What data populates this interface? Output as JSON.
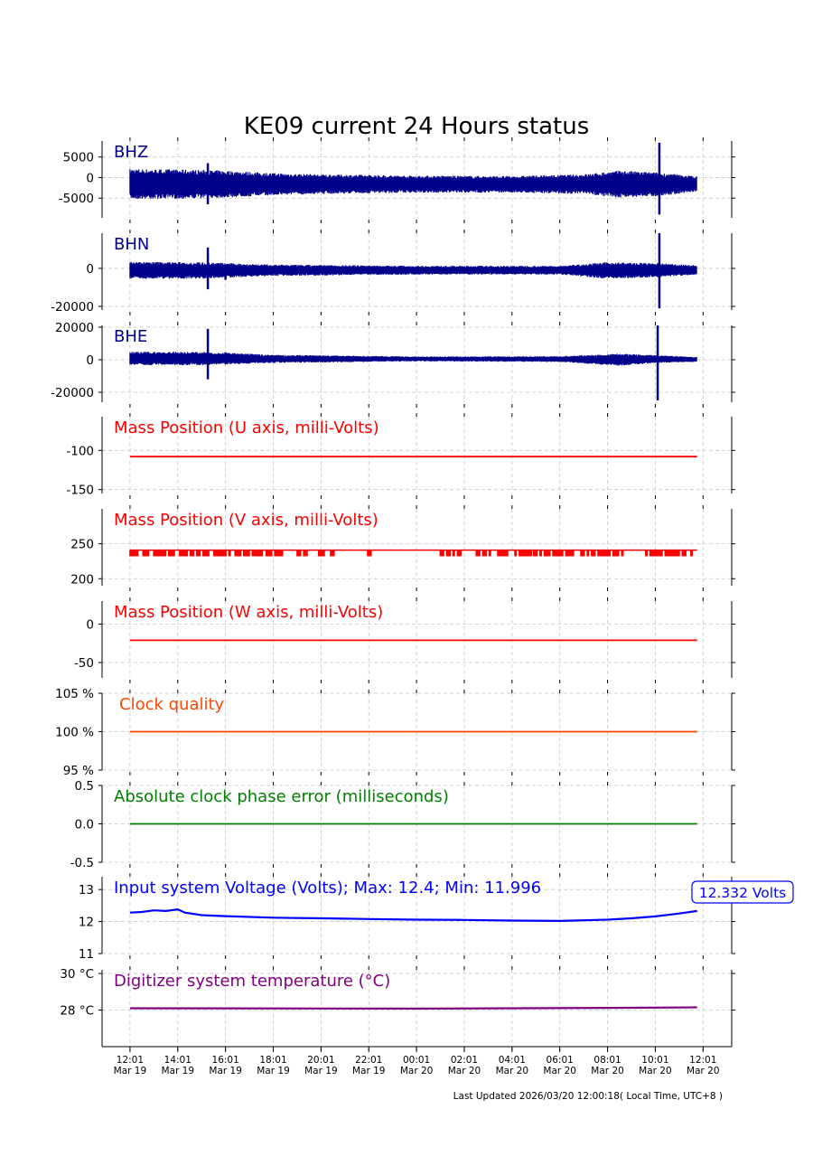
{
  "chart_data": {
    "type": "line",
    "title": "KE09 current 24 Hours status",
    "x_units": "hours since 12:01 Mar 19",
    "xlim": [
      -1.17,
      25.2
    ],
    "xticks": [
      {
        "x": 0,
        "time": "12:01",
        "date": "Mar 19"
      },
      {
        "x": 2,
        "time": "14:01",
        "date": "Mar 19"
      },
      {
        "x": 4,
        "time": "16:01",
        "date": "Mar 19"
      },
      {
        "x": 6,
        "time": "18:01",
        "date": "Mar 19"
      },
      {
        "x": 8,
        "time": "20:01",
        "date": "Mar 19"
      },
      {
        "x": 10,
        "time": "22:01",
        "date": "Mar 19"
      },
      {
        "x": 12,
        "time": "00:01",
        "date": "Mar 20"
      },
      {
        "x": 14,
        "time": "02:01",
        "date": "Mar 20"
      },
      {
        "x": 16,
        "time": "04:01",
        "date": "Mar 20"
      },
      {
        "x": 18,
        "time": "06:01",
        "date": "Mar 20"
      },
      {
        "x": 20,
        "time": "08:01",
        "date": "Mar 20"
      },
      {
        "x": 22,
        "time": "10:01",
        "date": "Mar 20"
      },
      {
        "x": 24,
        "time": "12:01",
        "date": "Mar 20"
      }
    ],
    "grid": true,
    "panels": [
      {
        "label": "BHZ",
        "color": "#00008b",
        "kind": "envelope",
        "ylim": [
          -9800,
          8900
        ],
        "yticks": [
          {
            "v": 5000,
            "t": "5000"
          },
          {
            "v": 0,
            "t": "0"
          },
          {
            "v": -5000,
            "t": "-5000"
          }
        ],
        "envelope": [
          [
            0,
            -4000,
            900
          ],
          [
            2,
            -4000,
            800
          ],
          [
            4,
            -3800,
            600
          ],
          [
            6,
            -3400,
            200
          ],
          [
            8,
            -3200,
            0
          ],
          [
            12,
            -3000,
            -200
          ],
          [
            16,
            -3000,
            -300
          ],
          [
            19,
            -3200,
            0
          ],
          [
            20.5,
            -3800,
            600
          ],
          [
            22,
            -3600,
            300
          ],
          [
            23.75,
            -2800,
            -300
          ]
        ],
        "spikes": [
          [
            3.26,
            -6500,
            3500
          ],
          [
            20.5,
            -3800,
            1500
          ],
          [
            22.17,
            -9000,
            8500
          ]
        ]
      },
      {
        "label": "BHN",
        "color": "#00008b",
        "kind": "envelope",
        "ylim": [
          -21900,
          18500
        ],
        "yticks": [
          {
            "v": 0,
            "t": "0"
          },
          {
            "v": -20000,
            "t": "-20000"
          }
        ],
        "envelope": [
          [
            0,
            -4000,
            2000
          ],
          [
            3,
            -4000,
            1800
          ],
          [
            6,
            -3000,
            1000
          ],
          [
            12,
            -2500,
            600
          ],
          [
            18,
            -2500,
            600
          ],
          [
            20,
            -4000,
            1800
          ],
          [
            22,
            -3500,
            1500
          ],
          [
            23.75,
            -2500,
            800
          ]
        ],
        "spikes": [
          [
            3.26,
            -11000,
            11000
          ],
          [
            4,
            -6000,
            2000
          ],
          [
            22.17,
            -21000,
            18500
          ]
        ]
      },
      {
        "label": "BHE",
        "color": "#00008b",
        "kind": "envelope",
        "ylim": [
          -26100,
          21100
        ],
        "yticks": [
          {
            "v": 20000,
            "t": "20000"
          },
          {
            "v": 0,
            "t": "0"
          },
          {
            "v": -20000,
            "t": "-20000"
          }
        ],
        "envelope": [
          [
            0,
            -2000,
            3500
          ],
          [
            3,
            -2000,
            3500
          ],
          [
            6,
            -1200,
            2200
          ],
          [
            12,
            -500,
            1500
          ],
          [
            18,
            -800,
            1600
          ],
          [
            20.5,
            -2500,
            2500
          ],
          [
            22,
            -1200,
            2000
          ],
          [
            23.75,
            -800,
            1200
          ]
        ],
        "spikes": [
          [
            3.26,
            -12000,
            19000
          ],
          [
            4,
            -1000,
            4500
          ],
          [
            22.1,
            -25000,
            21000
          ]
        ]
      },
      {
        "label": "Mass Position (U axis, milli-Volts)",
        "color": "#ff0000",
        "kind": "line",
        "ylim": [
          -155,
          -57
        ],
        "yticks": [
          {
            "v": -100,
            "t": "-100"
          },
          {
            "v": -150,
            "t": "-150"
          }
        ],
        "points": [
          [
            0,
            -108
          ],
          [
            23.75,
            -108
          ]
        ]
      },
      {
        "label": "Mass Position (V axis, milli-Volts)",
        "color": "#ff0000",
        "kind": "toggle",
        "ylim": [
          190,
          300
        ],
        "yticks": [
          {
            "v": 250,
            "t": "250"
          },
          {
            "v": 200,
            "t": "200"
          }
        ],
        "base": 241,
        "low": 233,
        "range": [
          0,
          23.75
        ],
        "drop_intervals": [
          [
            0,
            4.16
          ],
          [
            4.4,
            5.5
          ],
          [
            5.7,
            6.4
          ],
          [
            7,
            7.4
          ],
          [
            7.9,
            8.1
          ],
          [
            8.4,
            8.5
          ],
          [
            9.95,
            10.1
          ],
          [
            12.9,
            13.8
          ],
          [
            14.5,
            15.1
          ],
          [
            15.4,
            16.8
          ],
          [
            16.9,
            20.6
          ],
          [
            21.6,
            23.7
          ]
        ]
      },
      {
        "label": "Mass Position (W axis, milli-Volts)",
        "color": "#ff0000",
        "kind": "line",
        "ylim": [
          -70,
          30
        ],
        "yticks": [
          {
            "v": 0,
            "t": "0"
          },
          {
            "v": -50,
            "t": "-50"
          }
        ],
        "points": [
          [
            0,
            -21
          ],
          [
            23.75,
            -21
          ]
        ]
      },
      {
        "label": "Clock quality",
        "color": "#ff4500",
        "kind": "line",
        "ylim": [
          95,
          105
        ],
        "yticks": [
          {
            "v": 105,
            "t": "105 %"
          },
          {
            "v": 100,
            "t": "100 %"
          },
          {
            "v": 95,
            "t": "95 %"
          }
        ],
        "points": [
          [
            0,
            100
          ],
          [
            23.75,
            100
          ]
        ]
      },
      {
        "label": "Absolute clock phase error (milliseconds)",
        "color": "#008000",
        "kind": "line",
        "ylim": [
          -0.5,
          0.5
        ],
        "yticks": [
          {
            "v": 0.5,
            "t": "0.5"
          },
          {
            "v": 0,
            "t": "0.0"
          },
          {
            "v": -0.5,
            "t": "-0.5"
          }
        ],
        "points": [
          [
            0,
            0
          ],
          [
            23.75,
            0
          ]
        ]
      },
      {
        "label": "Input system Voltage (Volts);    Max: 12.4; Min: 11.996",
        "color": "#0000ff",
        "kind": "line",
        "ylim": [
          11,
          13.4
        ],
        "yticks": [
          {
            "v": 13,
            "t": "13"
          },
          {
            "v": 12,
            "t": "12"
          },
          {
            "v": 11,
            "t": "11"
          }
        ],
        "annotation": "12.332 Volts",
        "points": [
          [
            0,
            12.28
          ],
          [
            0.5,
            12.3
          ],
          [
            1,
            12.35
          ],
          [
            1.5,
            12.33
          ],
          [
            2,
            12.38
          ],
          [
            2.3,
            12.28
          ],
          [
            3,
            12.2
          ],
          [
            4,
            12.17
          ],
          [
            6,
            12.12
          ],
          [
            8,
            12.1
          ],
          [
            10,
            12.08
          ],
          [
            12,
            12.06
          ],
          [
            14,
            12.05
          ],
          [
            16,
            12.03
          ],
          [
            18,
            12.02
          ],
          [
            19,
            12.04
          ],
          [
            20,
            12.06
          ],
          [
            21,
            12.1
          ],
          [
            22,
            12.16
          ],
          [
            23,
            12.25
          ],
          [
            23.75,
            12.33
          ]
        ]
      },
      {
        "label": "Digitizer system temperature (°C)",
        "color": "#800080",
        "kind": "line",
        "ylim": [
          26,
          30.2
        ],
        "yticks": [
          {
            "v": 30,
            "t": "30 °C"
          },
          {
            "v": 28,
            "t": "28 °C"
          }
        ],
        "points": [
          [
            0,
            28.1
          ],
          [
            12,
            28.08
          ],
          [
            20,
            28.12
          ],
          [
            23.75,
            28.15
          ]
        ]
      }
    ],
    "footer": "Last Updated 2026/03/20 12:00:18( Local Time, UTC+8 )"
  }
}
